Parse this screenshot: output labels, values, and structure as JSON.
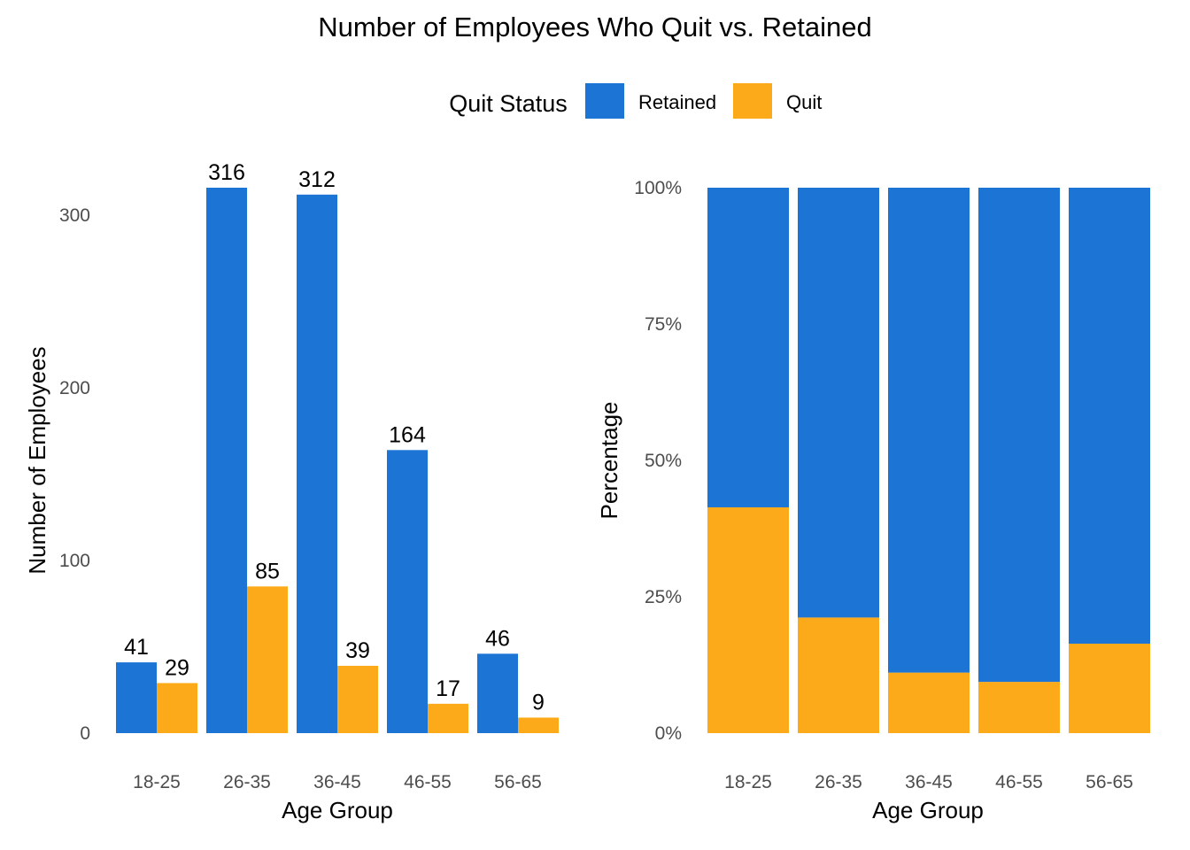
{
  "title": "Number of Employees Who Quit vs. Retained",
  "legend": {
    "title": "Quit Status",
    "items": [
      {
        "label": "Retained",
        "color": "#1C75D4"
      },
      {
        "label": "Quit",
        "color": "#FDAA1A"
      }
    ]
  },
  "chart_data": [
    {
      "type": "bar",
      "mode": "dodged",
      "categories": [
        "18-25",
        "26-35",
        "36-45",
        "46-55",
        "56-65"
      ],
      "series": [
        {
          "name": "Retained",
          "values": [
            41,
            316,
            312,
            164,
            46
          ]
        },
        {
          "name": "Quit",
          "values": [
            29,
            85,
            39,
            17,
            9
          ]
        }
      ],
      "xlabel": "Age Group",
      "ylabel": "Number of Employees",
      "ylim": [
        0,
        316
      ],
      "yticks": [
        "0",
        "100",
        "200",
        "300"
      ],
      "data_labels": true,
      "grid": false
    },
    {
      "type": "bar",
      "mode": "stacked-percent",
      "categories": [
        "18-25",
        "26-35",
        "36-45",
        "46-55",
        "56-65"
      ],
      "series": [
        {
          "name": "Retained",
          "values": [
            58.6,
            78.8,
            88.9,
            90.6,
            83.6
          ]
        },
        {
          "name": "Quit",
          "values": [
            41.4,
            21.2,
            11.1,
            9.4,
            16.4
          ]
        }
      ],
      "xlabel": "Age Group",
      "ylabel": "Percentage",
      "ylim": [
        0,
        100
      ],
      "yticks": [
        "0%",
        "25%",
        "50%",
        "75%",
        "100%"
      ],
      "grid": false
    }
  ]
}
